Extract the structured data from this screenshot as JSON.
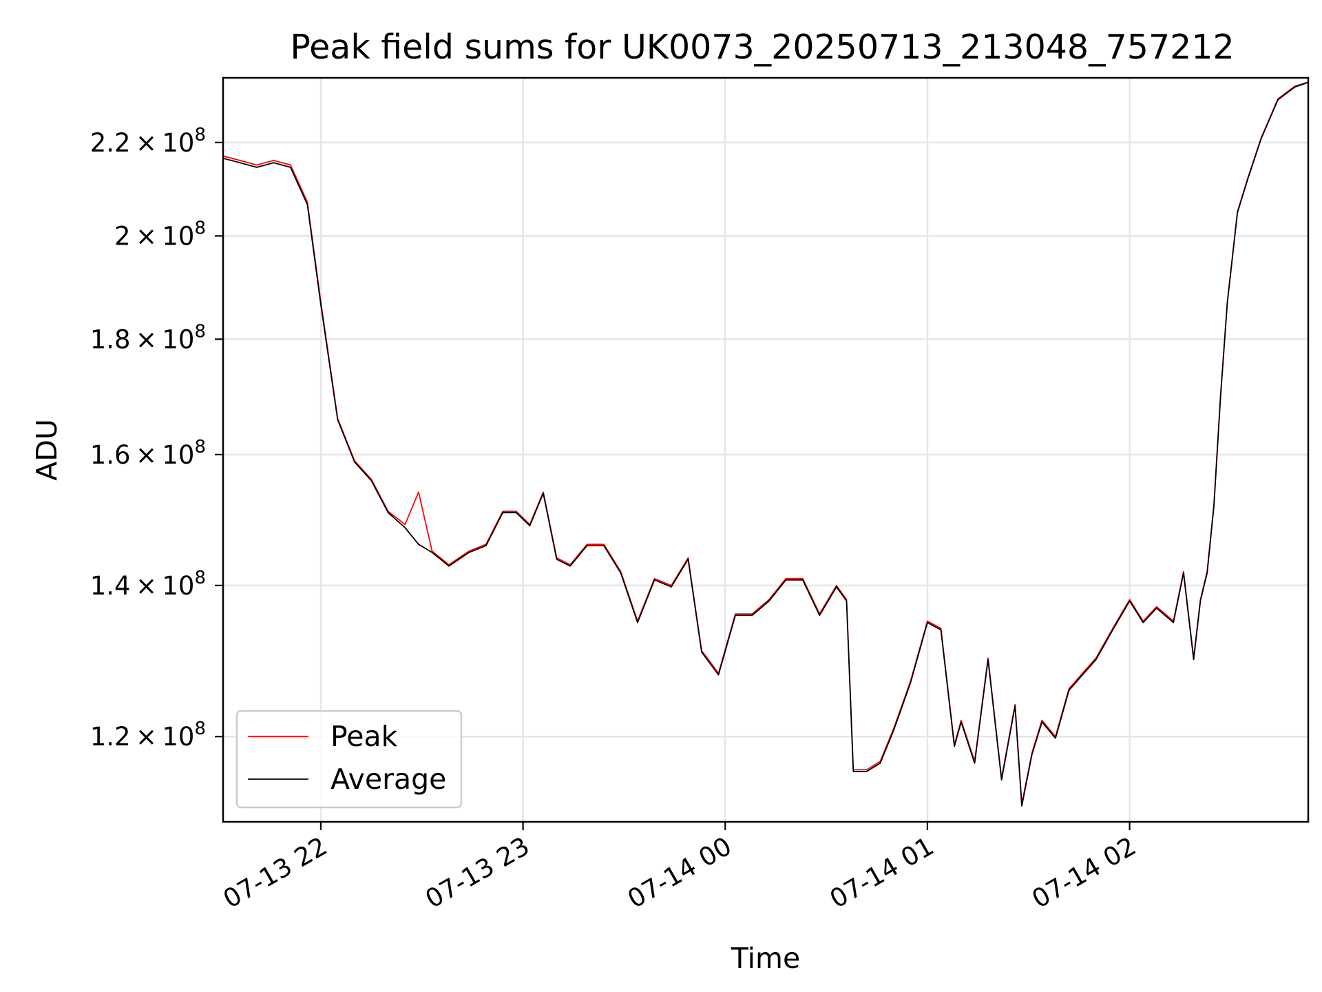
{
  "chart_data": {
    "type": "line",
    "title": "Peak field sums for UK0073_20250713_213048_757212",
    "xlabel": "Time",
    "ylabel": "ADU",
    "y_scale": "log",
    "xlim": [
      "2025-07-13 21:31",
      "2025-07-14 02:53"
    ],
    "ylim": [
      110000000,
      235000000
    ],
    "x_ticks": [
      {
        "value": "2025-07-13 22:00",
        "label": "07-13 22"
      },
      {
        "value": "2025-07-13 23:00",
        "label": "07-13 23"
      },
      {
        "value": "2025-07-14 00:00",
        "label": "07-14 00"
      },
      {
        "value": "2025-07-14 01:00",
        "label": "07-14 01"
      },
      {
        "value": "2025-07-14 02:00",
        "label": "07-14 02"
      }
    ],
    "y_ticks": [
      {
        "value": 120000000,
        "mantissa": "1.2",
        "exp": "8"
      },
      {
        "value": 140000000,
        "mantissa": "1.4",
        "exp": "8"
      },
      {
        "value": 160000000,
        "mantissa": "1.6",
        "exp": "8"
      },
      {
        "value": 180000000,
        "mantissa": "1.8",
        "exp": "8"
      },
      {
        "value": 200000000,
        "mantissa": "2",
        "exp": "8"
      },
      {
        "value": 220000000,
        "mantissa": "2.2",
        "exp": "8"
      }
    ],
    "grid": true,
    "legend_position": "lower-left",
    "series": [
      {
        "name": "Peak",
        "color": "#ff0000",
        "x": [
          "2025-07-13 21:31",
          "2025-07-13 21:36",
          "2025-07-13 21:41",
          "2025-07-13 21:46",
          "2025-07-13 21:51",
          "2025-07-13 21:56",
          "2025-07-13 22:00",
          "2025-07-13 22:05",
          "2025-07-13 22:10",
          "2025-07-13 22:15",
          "2025-07-13 22:20",
          "2025-07-13 22:25",
          "2025-07-13 22:29",
          "2025-07-13 22:33",
          "2025-07-13 22:38",
          "2025-07-13 22:44",
          "2025-07-13 22:49",
          "2025-07-13 22:54",
          "2025-07-13 22:58",
          "2025-07-13 23:02",
          "2025-07-13 23:06",
          "2025-07-13 23:10",
          "2025-07-13 23:14",
          "2025-07-13 23:19",
          "2025-07-13 23:24",
          "2025-07-13 23:29",
          "2025-07-13 23:34",
          "2025-07-13 23:39",
          "2025-07-13 23:44",
          "2025-07-13 23:49",
          "2025-07-13 23:53",
          "2025-07-13 23:58",
          "2025-07-14 00:03",
          "2025-07-14 00:08",
          "2025-07-14 00:13",
          "2025-07-14 00:18",
          "2025-07-14 00:23",
          "2025-07-14 00:28",
          "2025-07-14 00:33",
          "2025-07-14 00:36",
          "2025-07-14 00:38",
          "2025-07-14 00:42",
          "2025-07-14 00:46",
          "2025-07-14 00:50",
          "2025-07-14 00:55",
          "2025-07-14 01:00",
          "2025-07-14 01:04",
          "2025-07-14 01:08",
          "2025-07-14 01:10",
          "2025-07-14 01:14",
          "2025-07-14 01:18",
          "2025-07-14 01:22",
          "2025-07-14 01:26",
          "2025-07-14 01:28",
          "2025-07-14 01:31",
          "2025-07-14 01:34",
          "2025-07-14 01:38",
          "2025-07-14 01:42",
          "2025-07-14 01:46",
          "2025-07-14 01:50",
          "2025-07-14 01:55",
          "2025-07-14 02:00",
          "2025-07-14 02:04",
          "2025-07-14 02:08",
          "2025-07-14 02:13",
          "2025-07-14 02:16",
          "2025-07-14 02:19",
          "2025-07-14 02:21",
          "2025-07-14 02:23",
          "2025-07-14 02:25",
          "2025-07-14 02:27",
          "2025-07-14 02:29",
          "2025-07-14 02:32",
          "2025-07-14 02:35",
          "2025-07-14 02:39",
          "2025-07-14 02:44",
          "2025-07-14 02:49",
          "2025-07-14 02:53"
        ],
        "y": [
          217000000,
          216000000,
          215000000,
          216000000,
          215000000,
          207000000,
          187000000,
          166000000,
          159000000,
          156000000,
          151000000,
          149000000,
          154000000,
          145000000,
          143000000,
          145000000,
          146000000,
          151000000,
          151000000,
          149000000,
          154000000,
          144000000,
          143000000,
          146000000,
          146000000,
          142000000,
          135000000,
          141000000,
          140000000,
          144000000,
          131000000,
          128000000,
          136000000,
          136000000,
          138000000,
          141000000,
          141000000,
          136000000,
          140000000,
          138000000,
          116000000,
          116000000,
          117000000,
          121000000,
          127000000,
          135000000,
          134000000,
          119000000,
          122000000,
          117000000,
          130000000,
          115000000,
          124000000,
          112000000,
          118000000,
          122000000,
          120000000,
          126000000,
          128000000,
          130000000,
          134000000,
          138000000,
          135000000,
          137000000,
          135000000,
          142000000,
          130000000,
          138000000,
          142000000,
          152000000,
          170000000,
          187000000,
          205000000,
          212000000,
          221000000,
          230000000,
          233000000,
          234000000
        ]
      },
      {
        "name": "Average",
        "color": "#000000",
        "x": [
          "2025-07-13 21:31",
          "2025-07-13 21:36",
          "2025-07-13 21:41",
          "2025-07-13 21:46",
          "2025-07-13 21:51",
          "2025-07-13 21:56",
          "2025-07-13 22:00",
          "2025-07-13 22:05",
          "2025-07-13 22:10",
          "2025-07-13 22:15",
          "2025-07-13 22:20",
          "2025-07-13 22:25",
          "2025-07-13 22:29",
          "2025-07-13 22:33",
          "2025-07-13 22:38",
          "2025-07-13 22:44",
          "2025-07-13 22:49",
          "2025-07-13 22:54",
          "2025-07-13 22:58",
          "2025-07-13 23:02",
          "2025-07-13 23:06",
          "2025-07-13 23:10",
          "2025-07-13 23:14",
          "2025-07-13 23:19",
          "2025-07-13 23:24",
          "2025-07-13 23:29",
          "2025-07-13 23:34",
          "2025-07-13 23:39",
          "2025-07-13 23:44",
          "2025-07-13 23:49",
          "2025-07-13 23:53",
          "2025-07-13 23:58",
          "2025-07-14 00:03",
          "2025-07-14 00:08",
          "2025-07-14 00:13",
          "2025-07-14 00:18",
          "2025-07-14 00:23",
          "2025-07-14 00:28",
          "2025-07-14 00:33",
          "2025-07-14 00:36",
          "2025-07-14 00:38",
          "2025-07-14 00:42",
          "2025-07-14 00:46",
          "2025-07-14 00:50",
          "2025-07-14 00:55",
          "2025-07-14 01:00",
          "2025-07-14 01:04",
          "2025-07-14 01:08",
          "2025-07-14 01:10",
          "2025-07-14 01:14",
          "2025-07-14 01:18",
          "2025-07-14 01:22",
          "2025-07-14 01:26",
          "2025-07-14 01:28",
          "2025-07-14 01:31",
          "2025-07-14 01:34",
          "2025-07-14 01:38",
          "2025-07-14 01:42",
          "2025-07-14 01:46",
          "2025-07-14 01:50",
          "2025-07-14 01:55",
          "2025-07-14 02:00",
          "2025-07-14 02:04",
          "2025-07-14 02:08",
          "2025-07-14 02:13",
          "2025-07-14 02:16",
          "2025-07-14 02:19",
          "2025-07-14 02:21",
          "2025-07-14 02:23",
          "2025-07-14 02:25",
          "2025-07-14 02:27",
          "2025-07-14 02:29",
          "2025-07-14 02:32",
          "2025-07-14 02:35",
          "2025-07-14 02:39",
          "2025-07-14 02:44",
          "2025-07-14 02:49",
          "2025-07-14 02:53"
        ],
        "y": [
          216500000,
          215500000,
          214500000,
          215500000,
          214500000,
          206500000,
          186500000,
          165800000,
          158800000,
          155800000,
          150800000,
          148500000,
          146000000,
          144800000,
          142800000,
          144800000,
          145800000,
          150800000,
          150800000,
          148800000,
          153800000,
          143800000,
          142800000,
          145800000,
          145800000,
          141800000,
          134800000,
          140800000,
          139800000,
          143800000,
          130800000,
          127800000,
          135800000,
          135800000,
          137800000,
          140800000,
          140800000,
          135800000,
          139800000,
          137800000,
          115800000,
          115800000,
          116800000,
          120800000,
          126800000,
          134800000,
          133800000,
          118800000,
          121800000,
          116800000,
          129800000,
          114800000,
          123800000,
          111800000,
          117800000,
          121800000,
          119800000,
          125800000,
          127800000,
          129800000,
          133800000,
          137800000,
          134800000,
          136800000,
          134800000,
          141800000,
          129800000,
          137800000,
          141800000,
          151800000,
          169800000,
          186800000,
          204800000,
          211800000,
          220800000,
          229800000,
          232800000,
          233900000
        ]
      }
    ]
  }
}
